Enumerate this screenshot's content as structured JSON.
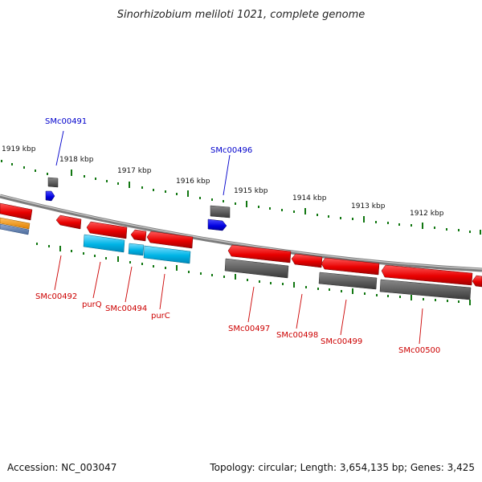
{
  "title": "Sinorhizobium meliloti 1021, complete genome",
  "footer": {
    "accession": "Accession: NC_003047",
    "summary": "Topology: circular; Length: 3,654,135 bp; Genes: 3,425"
  },
  "colors": {
    "cds": "#e80000",
    "rna": "#00b4e6",
    "pseudo_or_other": "#606060",
    "trna": "#0000e0",
    "orange": "#f09000",
    "steel": "#5070a0",
    "scale_ticks": "#117711",
    "label_red": "#cc0000",
    "label_blue": "#0000cc"
  },
  "scale_labels": [
    "1919 kbp",
    "1918 kbp",
    "1917 kbp",
    "1916 kbp",
    "1915 kbp",
    "1914 kbp",
    "1913 kbp",
    "1912 kbp"
  ],
  "gene_labels": [
    {
      "id": "SMc00491",
      "color": "blue"
    },
    {
      "id": "SMc00496",
      "color": "blue"
    },
    {
      "id": "SMc00492",
      "color": "red"
    },
    {
      "id": "purQ",
      "color": "red"
    },
    {
      "id": "SMc00494",
      "color": "red"
    },
    {
      "id": "purC",
      "color": "red"
    },
    {
      "id": "SMc00497",
      "color": "red"
    },
    {
      "id": "SMc00498",
      "color": "red"
    },
    {
      "id": "SMc00499",
      "color": "red"
    },
    {
      "id": "SMc00500",
      "color": "red"
    }
  ]
}
